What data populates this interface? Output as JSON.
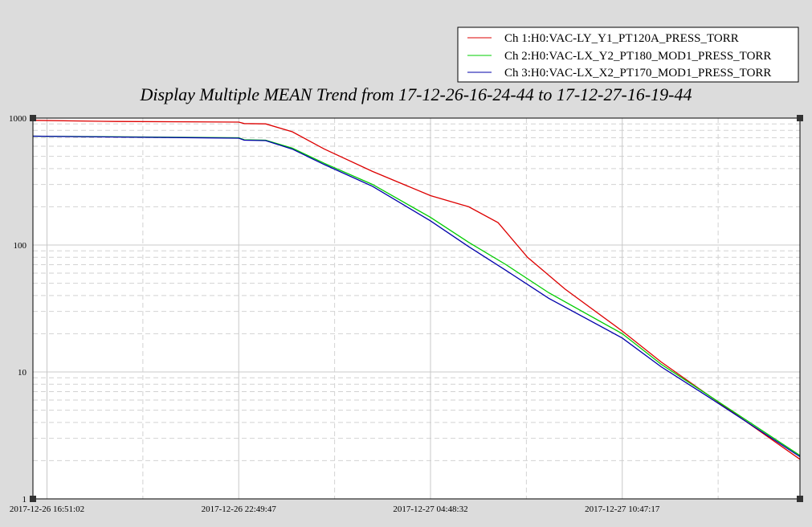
{
  "chart_data": {
    "type": "line",
    "title": "Display Multiple MEAN Trend from 17-12-26-16-24-44 to 17-12-27-16-19-44",
    "xlabel": "",
    "ylabel": "",
    "yscale": "log",
    "ylim": [
      1,
      1000
    ],
    "y_ticks": [
      {
        "value": 1000,
        "label": "1000"
      },
      {
        "value": 100,
        "label": "100"
      },
      {
        "value": 10,
        "label": "10"
      },
      {
        "value": 1,
        "label": "1"
      }
    ],
    "xlim": [
      "2017-12-26 16:24:44",
      "2017-12-27 16:19:44"
    ],
    "x_ticks": [
      "2017-12-26 16:51:02",
      "2017-12-26 22:49:47",
      "2017-12-27 04:48:32",
      "2017-12-27 10:47:17"
    ],
    "grid": true,
    "legend_position": "top-right",
    "series": [
      {
        "name": "Ch 1:H0:VAC-LY_Y1_PT120A_PRESS_TORR",
        "color": "#dd0000",
        "points": [
          [
            "2017-12-26 16:24:44",
            960
          ],
          [
            "2017-12-26 19:00:00",
            940
          ],
          [
            "2017-12-26 22:49:47",
            930
          ],
          [
            "2017-12-26 23:00:00",
            905
          ],
          [
            "2017-12-26 23:40:00",
            900
          ],
          [
            "2017-12-27 00:30:00",
            780
          ],
          [
            "2017-12-27 01:30:00",
            570
          ],
          [
            "2017-12-27 03:00:00",
            380
          ],
          [
            "2017-12-27 04:48:32",
            245
          ],
          [
            "2017-12-27 06:00:00",
            200
          ],
          [
            "2017-12-27 06:55:00",
            150
          ],
          [
            "2017-12-27 07:50:00",
            80
          ],
          [
            "2017-12-27 09:00:00",
            45
          ],
          [
            "2017-12-27 10:47:17",
            21
          ],
          [
            "2017-12-27 12:00:00",
            12
          ],
          [
            "2017-12-27 13:30:00",
            6.5
          ],
          [
            "2017-12-27 16:19:44",
            2.05
          ]
        ]
      },
      {
        "name": "Ch 2:H0:VAC-LX_Y2_PT180_MOD1_PRESS_TORR",
        "color": "#00cc00",
        "points": [
          [
            "2017-12-26 16:24:44",
            720
          ],
          [
            "2017-12-26 22:49:47",
            700
          ],
          [
            "2017-12-26 23:00:00",
            675
          ],
          [
            "2017-12-26 23:40:00",
            670
          ],
          [
            "2017-12-27 00:30:00",
            580
          ],
          [
            "2017-12-27 01:30:00",
            440
          ],
          [
            "2017-12-27 03:00:00",
            300
          ],
          [
            "2017-12-27 04:48:32",
            165
          ],
          [
            "2017-12-27 06:00:00",
            105
          ],
          [
            "2017-12-27 07:10:00",
            70
          ],
          [
            "2017-12-27 08:30:00",
            42
          ],
          [
            "2017-12-27 10:47:17",
            20
          ],
          [
            "2017-12-27 12:00:00",
            11.5
          ],
          [
            "2017-12-27 13:30:00",
            6.5
          ],
          [
            "2017-12-27 16:19:44",
            2.2
          ]
        ]
      },
      {
        "name": "Ch 3:H0:VAC-LX_X2_PT170_MOD1_PRESS_TORR",
        "color": "#0000aa",
        "points": [
          [
            "2017-12-26 16:24:44",
            720
          ],
          [
            "2017-12-26 22:49:47",
            695
          ],
          [
            "2017-12-26 23:00:00",
            670
          ],
          [
            "2017-12-26 23:40:00",
            665
          ],
          [
            "2017-12-27 00:30:00",
            570
          ],
          [
            "2017-12-27 01:30:00",
            430
          ],
          [
            "2017-12-27 03:00:00",
            290
          ],
          [
            "2017-12-27 04:48:32",
            155
          ],
          [
            "2017-12-27 06:00:00",
            97
          ],
          [
            "2017-12-27 07:10:00",
            63
          ],
          [
            "2017-12-27 08:30:00",
            38
          ],
          [
            "2017-12-27 10:47:17",
            18.5
          ],
          [
            "2017-12-27 12:00:00",
            11
          ],
          [
            "2017-12-27 13:30:00",
            6.3
          ],
          [
            "2017-12-27 16:19:44",
            2.15
          ]
        ]
      }
    ]
  }
}
